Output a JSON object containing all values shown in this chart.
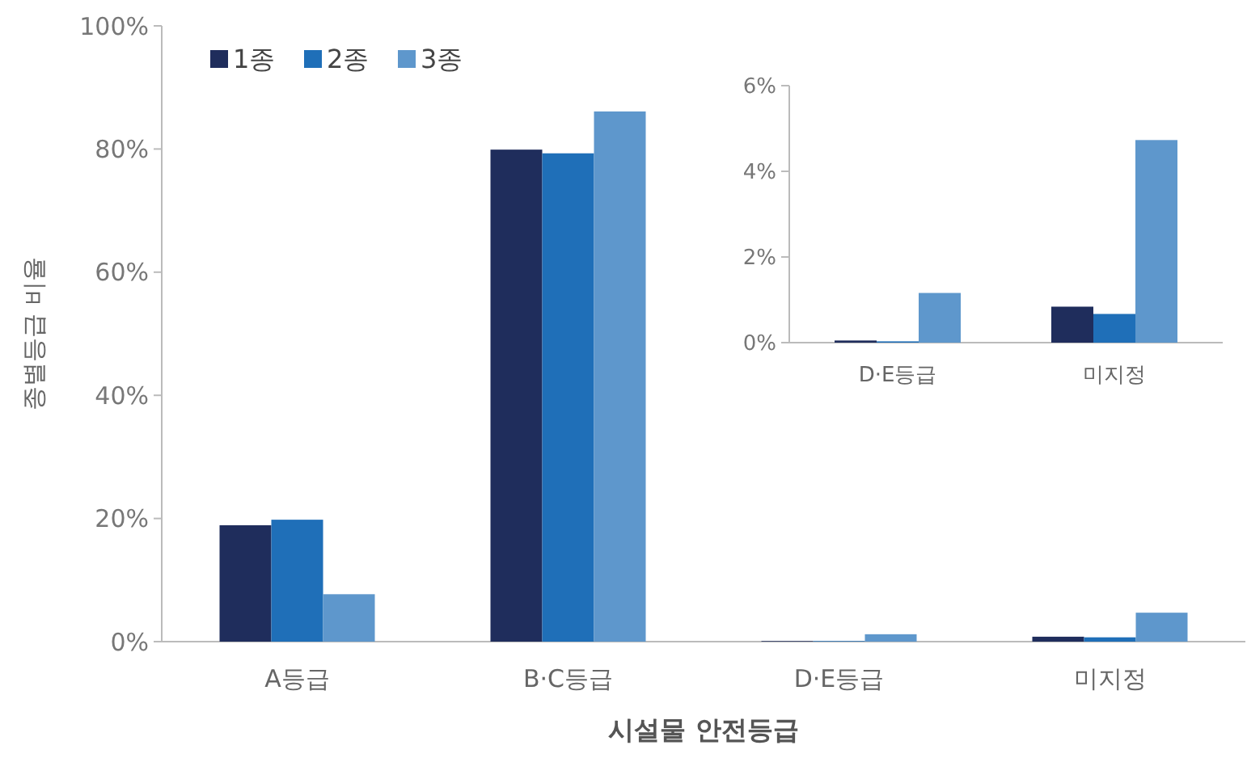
{
  "chart_data": [
    {
      "type": "bar",
      "xlabel": "시설물 안전등급",
      "ylabel": "종별등급 비율",
      "categories": [
        "A등급",
        "B·C등급",
        "D·E등급",
        "미지정"
      ],
      "series": [
        {
          "name": "1종",
          "color": "#1f2d5c",
          "values": [
            18.9,
            79.9,
            0.1,
            0.8
          ]
        },
        {
          "name": "2종",
          "color": "#1f6fb8",
          "values": [
            19.8,
            79.3,
            0.1,
            0.7
          ]
        },
        {
          "name": "3종",
          "color": "#5e97cc",
          "values": [
            7.7,
            86.1,
            1.2,
            4.7
          ]
        }
      ],
      "ylim": [
        0,
        100
      ],
      "yticks": [
        {
          "value": 0,
          "label": "0%"
        },
        {
          "value": 20,
          "label": "20%"
        },
        {
          "value": 40,
          "label": "40%"
        },
        {
          "value": 60,
          "label": "60%"
        },
        {
          "value": 80,
          "label": "80%"
        },
        {
          "value": 100,
          "label": "100%"
        }
      ],
      "grid": false,
      "legend": "top left"
    },
    {
      "type": "bar",
      "categories": [
        "D·E등급",
        "미지정"
      ],
      "series": [
        {
          "color": "#1f2d5c",
          "values": [
            0.05,
            0.84
          ]
        },
        {
          "color": "#1f6fb8",
          "values": [
            0.03,
            0.67
          ]
        },
        {
          "color": "#5e97cc",
          "values": [
            1.16,
            4.73
          ]
        }
      ],
      "ylim": [
        0,
        6
      ],
      "yticks": [
        {
          "value": 0,
          "label": "0%"
        },
        {
          "value": 2,
          "label": "2%"
        },
        {
          "value": 4,
          "label": "4%"
        },
        {
          "value": 6,
          "label": "6%"
        }
      ],
      "grid": false
    }
  ]
}
